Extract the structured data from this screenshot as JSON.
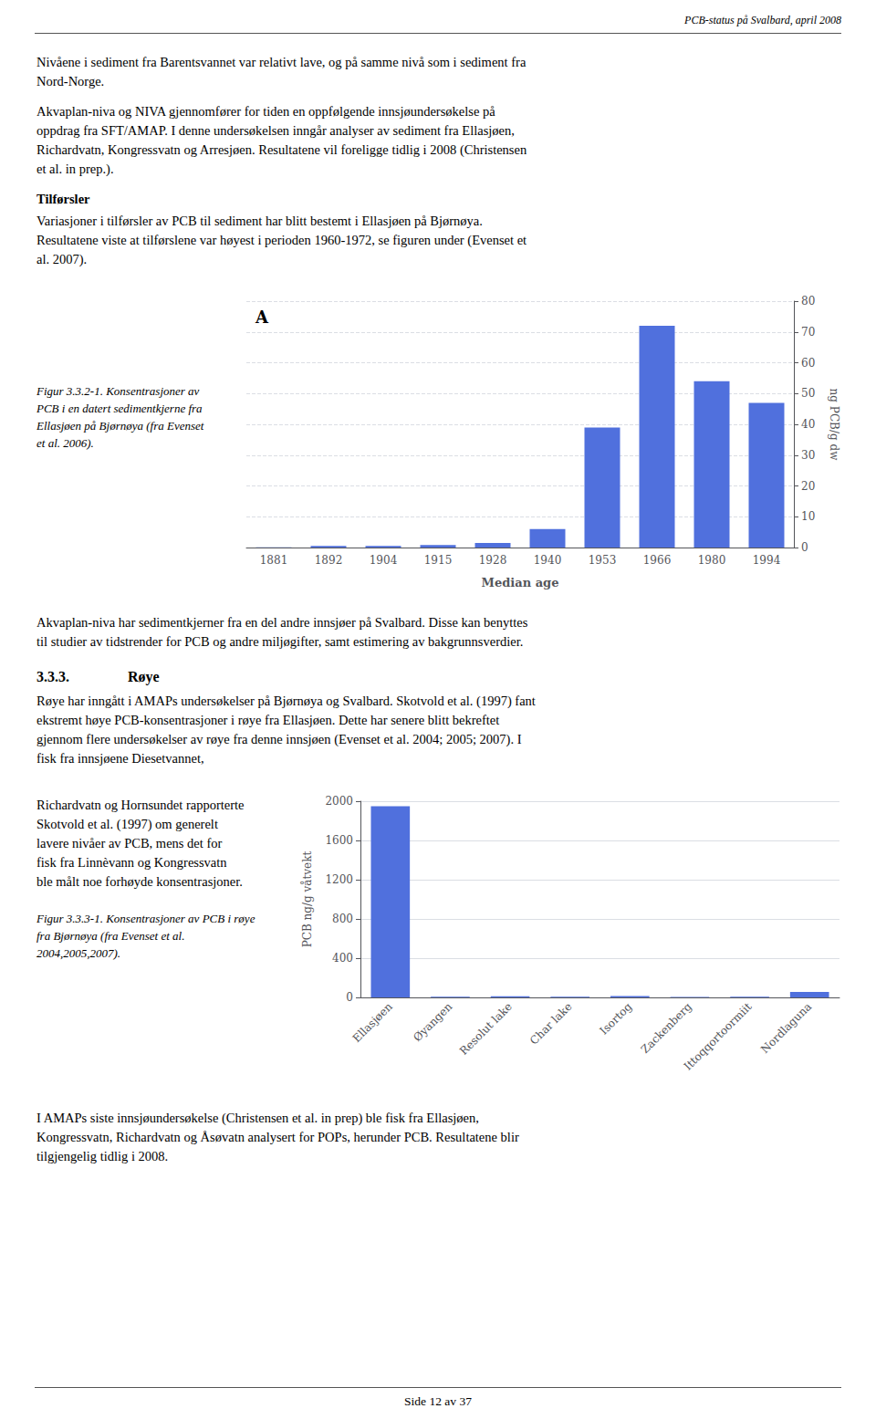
{
  "page_title": "PCB-status på Svalbard, april 2008",
  "page_footer": "Side 12 av 37",
  "text": [
    "Nivåene i sediment fra Barentsvannet var relativt lave, og på samme nivå som i sediment fra\nNord-Norge.",
    "Akvaplan-niva og NIVA gjennomfører for tiden en oppfølgende innsjøundersøkelse på\noppdrag fra SFT/AMAP. I denne undersøkelsen inngår analyser av sediment fra Ellasjøen,\nRichardvatn, Kongressvatn og Arresjøen. Resultatene vil foreligge tidlig i 2008 (Christensen\net al. in prep.).",
    "Tilførsler",
    "Variasjoner i tilførsler av PCB til sediment har blitt bestemt i Ellasjøen på Bjørnøya.\nResultatene viste at tilførslene var høyest i perioden 1960-1972, se figuren under (Evenset et\nal. 2007).",
    "Figur 3.3.2-1. Konsentrasjoner av\nPCB i en datert sedimentkjerne fra\nEllasjøen på Bjørnøya (fra Evenset\net al. 2006).",
    "Akvaplan-niva har sedimentkjerner fra en del andre innsjøer på Svalbard. Disse kan benyttes\ntil studier av tidstrender for PCB og andre miljøgifter, samt estimering av bakgrunnsverdier.",
    "3.3.3.",
    "Røye",
    "Røye har inngått i AMAPs undersøkelser på Bjørnøya og Svalbard. Skotvold et al. (1997) fant\nekstremt høye PCB-konsentrasjoner i røye fra Ellasjøen. Dette har senere blitt bekreftet\ngjennom flere undersøkelser av røye fra denne innsjøen (Evenset et al. 2004; 2005; 2007). I\nfisk fra innsjøene Diesetvannet,",
    "Richardvatn og Hornsundet rapporterte\nSkotvold et al. (1997) om generelt\nlavere nivåer av PCB, mens det for\nfisk fra Linnèvann og Kongressvatn\nble målt noe forhøyde konsentrasjoner.",
    "Figur 3.3.3-1. Konsentrasjoner av PCB i røye\nfra Bjørnøya (fra Evenset et al.\n2004,2005,2007).",
    "I AMAPs siste innsjøundersøkelse (Christensen et al. in prep) ble fisk fra Ellasjøen,\nKongressvatn, Richardvatn og Åsøvatn analysert for POPs, herunder PCB. Resultatene blir\ntilgjengelig tidlig i 2008."
  ],
  "chart_data": [
    {
      "type": "bar",
      "categories": [
        "1881",
        "1892",
        "1904",
        "1915",
        "1928",
        "1940",
        "1953",
        "1966",
        "1980",
        "1994"
      ],
      "values": [
        0.1,
        0.5,
        0.5,
        0.8,
        1.5,
        6.0,
        39.0,
        72.0,
        54.0,
        47.0
      ],
      "xlabel": "Median age",
      "ylabel": "ng PCB/g dw",
      "ylim": [
        0,
        80
      ],
      "yticks": [
        0,
        10,
        20,
        30,
        40,
        50,
        60,
        70,
        80
      ],
      "annotations": [
        "A"
      ],
      "grid": true
    },
    {
      "type": "bar",
      "categories": [
        "Ellasjøen",
        "Øyangen",
        "Resolut lake",
        "Char lake",
        "Isortog",
        "Zackenberg",
        "Ittoqqortoormiit",
        "Nordlaguna"
      ],
      "values": [
        1950.0,
        8.0,
        12.0,
        8.0,
        15.0,
        4.0,
        8.0,
        55.0
      ],
      "ylabel": "PCB ng/g våtvekt",
      "ylim": [
        0,
        2000
      ],
      "yticks": [
        0,
        400,
        800,
        1200,
        1600,
        2000
      ],
      "grid": true
    }
  ]
}
